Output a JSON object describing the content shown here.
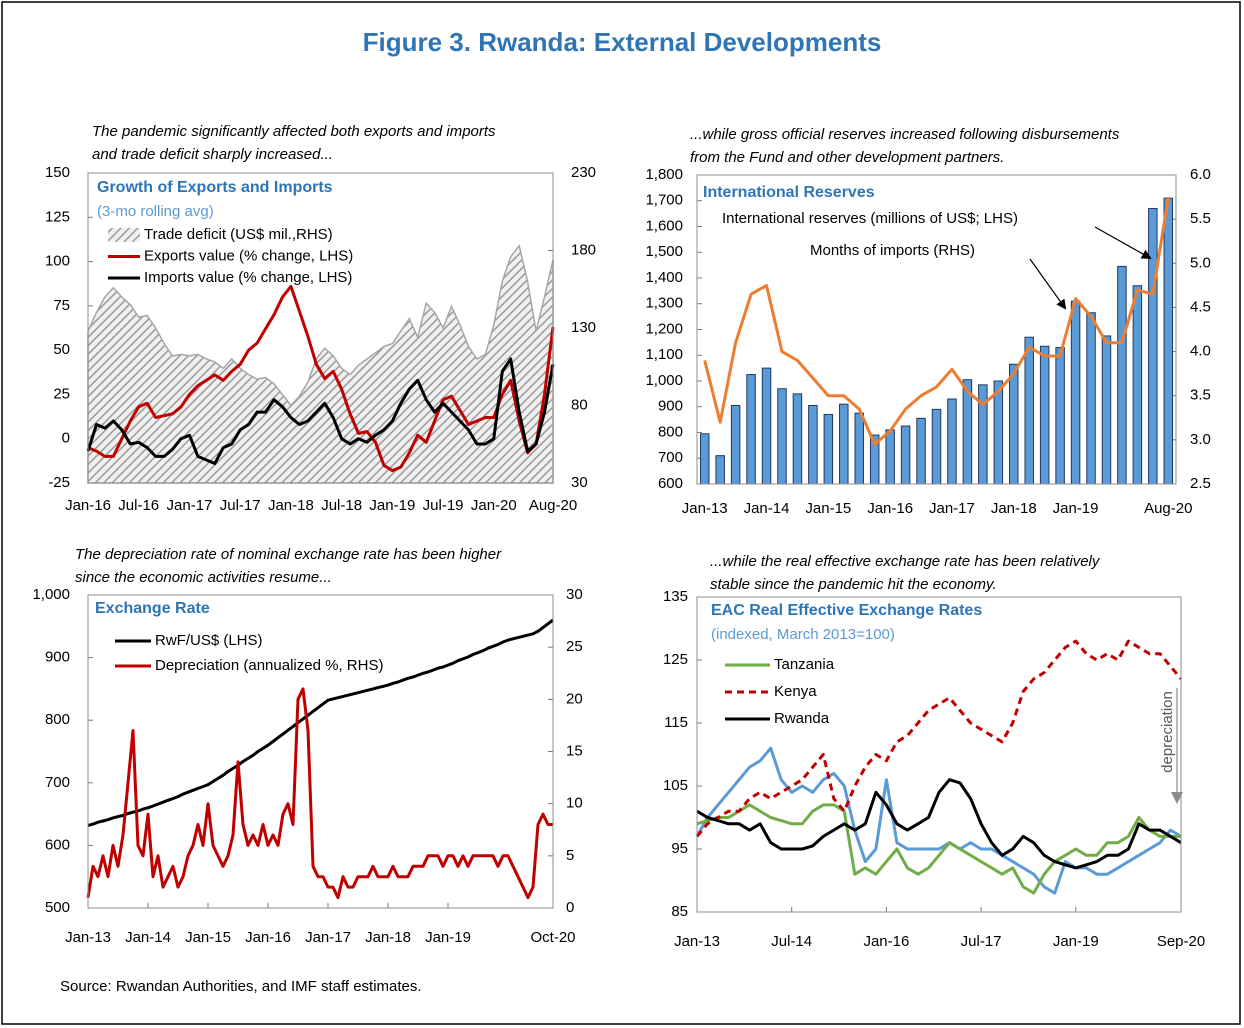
{
  "title": "Figure 3. Rwanda: External Developments",
  "source": "Source: Rwandan Authorities, and IMF staff estimates.",
  "chart_data": [
    {
      "type": "line",
      "caption": [
        "The pandemic significantly affected both exports and imports",
        "and trade deficit sharply increased..."
      ],
      "title": "Growth of Exports and Imports",
      "subtitle": "(3-mo rolling avg)",
      "categories": [
        "Jan-16",
        null,
        null,
        null,
        null,
        null,
        "Jul-16",
        null,
        null,
        null,
        null,
        null,
        "Jan-17",
        null,
        null,
        null,
        null,
        null,
        "Jul-17",
        null,
        null,
        null,
        null,
        null,
        "Jan-18",
        null,
        null,
        null,
        null,
        null,
        "Jul-18",
        null,
        null,
        null,
        null,
        null,
        "Jan-19",
        null,
        null,
        null,
        null,
        null,
        "Jul-19",
        null,
        null,
        null,
        null,
        null,
        "Jan-20",
        null,
        null,
        null,
        null,
        null,
        null,
        "Aug-20"
      ],
      "ylim": [
        -25,
        150
      ],
      "yticks": [
        -25,
        0,
        25,
        50,
        75,
        100,
        125,
        150
      ],
      "y2lim": [
        30,
        230
      ],
      "y2ticks": [
        30,
        80,
        130,
        180,
        230
      ],
      "series": [
        {
          "name": "Trade deficit (US$ mil.,RHS)",
          "style": "area",
          "pattern": "hatch",
          "color": "#a6a6a6",
          "axis": "y2",
          "values": [
            128,
            140,
            150,
            156,
            150,
            145,
            137,
            138,
            130,
            120,
            112,
            113,
            112,
            113,
            110,
            108,
            104,
            110,
            104,
            100,
            97,
            98,
            94,
            87,
            80,
            86,
            95,
            110,
            117,
            112,
            104,
            100,
            106,
            110,
            114,
            118,
            120,
            128,
            136,
            124,
            146,
            140,
            130,
            144,
            132,
            118,
            110,
            113,
            132,
            160,
            176,
            183,
            160,
            128,
            150,
            174
          ]
        },
        {
          "name": "Exports value (% change, LHS)",
          "style": "line",
          "color": "#c00000",
          "values": [
            -5,
            -7,
            -10,
            -10,
            0,
            10,
            18,
            20,
            12,
            13,
            14,
            18,
            25,
            30,
            33,
            36,
            33,
            38,
            42,
            50,
            54,
            62,
            70,
            80,
            86,
            72,
            58,
            42,
            34,
            38,
            28,
            14,
            3,
            4,
            -2,
            -15,
            -18,
            -16,
            -8,
            2,
            -2,
            10,
            22,
            24,
            16,
            8,
            10,
            12,
            12,
            25,
            33,
            10,
            -8,
            -3,
            25,
            63
          ]
        },
        {
          "name": "Imports value (% change, LHS)",
          "style": "line",
          "color": "#000000",
          "values": [
            -7,
            8,
            6,
            10,
            5,
            -3,
            -2,
            -5,
            -10,
            -10,
            -6,
            0,
            2,
            -10,
            -12,
            -14,
            -5,
            -3,
            5,
            8,
            15,
            15,
            22,
            18,
            12,
            8,
            10,
            15,
            20,
            12,
            0,
            -3,
            0,
            -2,
            2,
            5,
            10,
            20,
            28,
            33,
            22,
            15,
            20,
            15,
            10,
            5,
            -3,
            -3,
            0,
            38,
            45,
            15,
            -7,
            -3,
            15,
            42
          ]
        }
      ]
    },
    {
      "type": "bar",
      "caption": [
        "...while gross official reserves increased following disbursements",
        "from the Fund and other development partners."
      ],
      "title": "International Reserves",
      "categories": [
        "Jan-13",
        null,
        null,
        null,
        "Jan-14",
        null,
        null,
        null,
        "Jan-15",
        null,
        null,
        null,
        "Jan-16",
        null,
        null,
        null,
        "Jan-17",
        null,
        null,
        null,
        "Jan-18",
        null,
        null,
        null,
        "Jan-19",
        null,
        null,
        null,
        null,
        null,
        "Aug-20"
      ],
      "ylim": [
        600,
        1800
      ],
      "yticks": [
        600,
        700,
        800,
        900,
        {
          "value": 1000,
          "label": "1,000"
        },
        {
          "value": 1100,
          "label": "1,100"
        },
        {
          "value": 1200,
          "label": "1,200"
        },
        {
          "value": 1300,
          "label": "1,300"
        },
        {
          "value": 1400,
          "label": "1,400"
        },
        {
          "value": 1500,
          "label": "1,500"
        },
        {
          "value": 1600,
          "label": "1,600"
        },
        {
          "value": 1700,
          "label": "1,700"
        },
        {
          "value": 1800,
          "label": "1,800"
        }
      ],
      "y2lim": [
        2.5,
        6
      ],
      "y2ticks": [
        2.5,
        {
          "value": 3,
          "label": "3.0"
        },
        3.5,
        {
          "value": 4,
          "label": "4.0"
        },
        4.5,
        {
          "value": 5,
          "label": "5.0"
        },
        5.5,
        {
          "value": 6,
          "label": "6.0"
        }
      ],
      "series": [
        {
          "name": "International reserves (millions of US$; LHS)",
          "style": "bar",
          "color": "#5b9bd5",
          "values": [
            795,
            710,
            905,
            1025,
            1050,
            970,
            950,
            905,
            870,
            910,
            875,
            790,
            810,
            825,
            855,
            890,
            930,
            1005,
            985,
            1000,
            1065,
            1170,
            1135,
            1130,
            1310,
            1265,
            1175,
            1445,
            1370,
            1670,
            1710
          ]
        },
        {
          "name": "Months of imports (RHS)",
          "style": "line",
          "color": "#ed7d31",
          "axis": "y2",
          "values": [
            3.9,
            3.2,
            4.1,
            4.65,
            4.75,
            4.0,
            3.9,
            3.7,
            3.5,
            3.5,
            3.35,
            2.95,
            3.1,
            3.35,
            3.5,
            3.6,
            3.8,
            3.55,
            3.4,
            3.55,
            3.75,
            4.05,
            3.95,
            3.95,
            4.6,
            4.4,
            4.1,
            4.1,
            4.7,
            4.65,
            5.75
          ]
        }
      ]
    },
    {
      "type": "line",
      "caption": [
        "The depreciation rate of nominal exchange rate has been higher",
        "since the economic activities resume..."
      ],
      "title": "Exchange Rate",
      "categories": [
        "Jan-13",
        null,
        null,
        null,
        null,
        null,
        null,
        null,
        null,
        null,
        null,
        null,
        "Jan-14",
        null,
        null,
        null,
        null,
        null,
        null,
        null,
        null,
        null,
        null,
        null,
        "Jan-15",
        null,
        null,
        null,
        null,
        null,
        null,
        null,
        null,
        null,
        null,
        null,
        "Jan-16",
        null,
        null,
        null,
        null,
        null,
        null,
        null,
        null,
        null,
        null,
        null,
        "Jan-17",
        null,
        null,
        null,
        null,
        null,
        null,
        null,
        null,
        null,
        null,
        null,
        "Jan-18",
        null,
        null,
        null,
        null,
        null,
        null,
        null,
        null,
        null,
        null,
        null,
        "Jan-19",
        null,
        null,
        null,
        null,
        null,
        null,
        null,
        null,
        null,
        null,
        null,
        null,
        null,
        null,
        null,
        null,
        null,
        null,
        null,
        null,
        "Oct-20"
      ],
      "ylim": [
        500,
        1000
      ],
      "yticks": [
        500,
        600,
        700,
        800,
        900,
        {
          "value": 1000,
          "label": "1,000"
        }
      ],
      "y2lim": [
        0,
        30
      ],
      "y2ticks": [
        0,
        5,
        10,
        15,
        20,
        25,
        30
      ],
      "series": [
        {
          "name": "RwF/US$ (LHS)",
          "style": "line",
          "color": "#000000",
          "values": [
            632,
            634,
            637,
            639,
            641,
            644,
            646,
            648,
            651,
            653,
            655,
            658,
            660,
            663,
            666,
            669,
            672,
            675,
            678,
            682,
            685,
            688,
            691,
            694,
            697,
            702,
            707,
            712,
            718,
            723,
            728,
            734,
            739,
            744,
            750,
            755,
            760,
            766,
            772,
            778,
            784,
            790,
            796,
            802,
            808,
            814,
            820,
            826,
            832,
            834,
            836,
            838,
            840,
            842,
            844,
            846,
            848,
            850,
            852,
            854,
            856,
            859,
            861,
            864,
            867,
            869,
            872,
            875,
            877,
            880,
            883,
            885,
            888,
            891,
            895,
            898,
            901,
            905,
            908,
            911,
            915,
            918,
            921,
            925,
            928,
            930,
            932,
            934,
            936,
            938,
            942,
            948,
            954,
            960
          ]
        },
        {
          "name": "Depreciation (annualized %, RHS)",
          "style": "line",
          "color": "#c00000",
          "axis": "y2",
          "values": [
            1,
            4,
            3,
            5,
            3,
            6,
            4,
            7,
            12,
            17,
            6,
            5,
            9,
            3,
            5,
            2,
            3,
            4,
            2,
            3,
            5,
            6,
            8,
            6,
            10,
            6,
            5,
            4,
            5,
            7,
            14,
            8,
            6,
            7,
            6,
            8,
            6,
            7,
            6,
            9,
            10,
            8,
            20,
            21,
            17,
            4,
            3,
            3,
            2,
            2,
            1,
            3,
            2,
            2,
            3,
            3,
            3,
            4,
            3,
            3,
            3,
            4,
            3,
            3,
            3,
            4,
            4,
            4,
            5,
            5,
            5,
            4,
            5,
            5,
            4,
            5,
            4,
            5,
            5,
            5,
            5,
            5,
            4,
            5,
            5,
            4,
            3,
            2,
            1,
            2,
            8,
            9,
            8,
            8
          ]
        }
      ]
    },
    {
      "type": "line",
      "caption": [
        "...while the real effective exchange rate has been relatively",
        "stable since the pandemic hit the economy."
      ],
      "title": "EAC Real Effective Exchange Rates",
      "subtitle": "(indexed, March 2013=100)",
      "annotations": [
        "depreciation"
      ],
      "categories": [
        "Jan-13",
        null,
        null,
        null,
        null,
        null,
        null,
        null,
        null,
        "Jul-14",
        null,
        null,
        null,
        null,
        null,
        null,
        null,
        null,
        "Jan-16",
        null,
        null,
        null,
        null,
        null,
        null,
        null,
        null,
        "Jul-17",
        null,
        null,
        null,
        null,
        null,
        null,
        null,
        null,
        "Jan-19",
        null,
        null,
        null,
        null,
        null,
        null,
        null,
        null,
        null,
        "Sep-20"
      ],
      "ylim": [
        85,
        135
      ],
      "yticks": [
        85,
        95,
        105,
        115,
        125,
        135
      ],
      "series": [
        {
          "color": "#5b9bd5",
          "style": "line",
          "values": [
            97,
            100,
            102,
            104,
            106,
            108,
            109,
            111,
            106,
            104,
            105,
            104,
            106,
            107,
            105,
            98,
            93,
            95,
            106,
            96,
            95,
            95,
            95,
            95,
            96,
            95,
            96,
            95,
            95,
            94,
            93,
            92,
            91,
            89,
            88,
            93,
            92,
            92,
            91,
            91,
            92,
            93,
            94,
            95,
            96,
            98,
            97
          ]
        },
        {
          "name": "Tanzania",
          "style": "line",
          "color": "#70ad47",
          "values": [
            99,
            99.5,
            100,
            100,
            101,
            102,
            101,
            100,
            99.5,
            99,
            99,
            101,
            102,
            102,
            101,
            91,
            92,
            91,
            93,
            95,
            92,
            91,
            92,
            94,
            96,
            95,
            94,
            93,
            92,
            91,
            92,
            89,
            88,
            91,
            93,
            94,
            95,
            94,
            94,
            96,
            96,
            97,
            100,
            98,
            97,
            97,
            97
          ]
        },
        {
          "name": "Kenya",
          "style": "line",
          "dash": true,
          "color": "#c00000",
          "values": [
            97,
            99,
            100,
            101,
            101,
            103,
            104,
            103,
            104,
            105,
            106,
            108,
            110,
            103,
            101,
            105,
            108,
            110,
            109,
            112,
            113,
            115,
            117,
            118,
            119,
            117,
            115,
            114,
            113,
            112,
            115,
            120,
            122,
            123,
            125,
            127,
            128,
            126,
            125,
            126,
            125,
            128,
            127,
            126,
            126,
            124,
            122
          ]
        },
        {
          "name": "Rwanda",
          "style": "line",
          "color": "#000000",
          "values": [
            101,
            100,
            99.5,
            99,
            99,
            98,
            99,
            96,
            95,
            95,
            95,
            95.5,
            97,
            98,
            99,
            98,
            99,
            104,
            102,
            99,
            98,
            99,
            100,
            104,
            106,
            105.5,
            103,
            99,
            96,
            94,
            95,
            97,
            96,
            94,
            93,
            92.5,
            92,
            92.5,
            93,
            94,
            94,
            95,
            99,
            98,
            98,
            97,
            96
          ]
        }
      ]
    }
  ]
}
